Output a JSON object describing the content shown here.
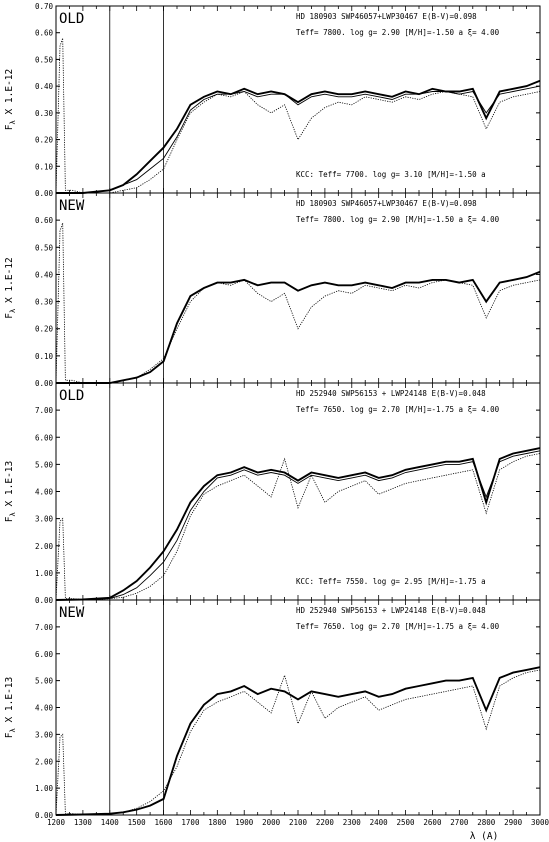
{
  "chart_data": [
    {
      "type": "line",
      "panel_label": "OLD",
      "ylabel_prefix": "F",
      "ylabel_sub": "λ",
      "ylabel_suffix": "X",
      "scale_label": "1.E-12",
      "header": "HD 180903 SWP46057+LWP30467   E(B-V)=0.098",
      "params": "Teff=   7800.  log g= 2.90 [M/H]=-1.50 a  ξ= 4.00",
      "kcc": "KCC: Teff=  7700. log g= 3.10 [M/H]=-1.50 a",
      "ylim": [
        0,
        0.7
      ],
      "y_ticks": [
        "0.00",
        "0.10",
        "0.20",
        "0.30",
        "0.40",
        "0.50",
        "0.60",
        "0.70"
      ],
      "series": [
        {
          "style": "dotted",
          "x": [
            1200,
            1215,
            1225,
            1235,
            1260,
            1300,
            1350,
            1400,
            1450,
            1500,
            1550,
            1600,
            1650,
            1700,
            1750,
            1800,
            1850,
            1900,
            1950,
            2000,
            2050,
            2100,
            2150,
            2200,
            2250,
            2300,
            2350,
            2400,
            2450,
            2500,
            2550,
            2600,
            2650,
            2700,
            2750,
            2800,
            2850,
            2900,
            2950,
            3000
          ],
          "y": [
            0.0,
            0.55,
            0.58,
            0.01,
            0.01,
            0.0,
            0.0,
            0.0,
            0.01,
            0.02,
            0.05,
            0.09,
            0.2,
            0.3,
            0.34,
            0.37,
            0.36,
            0.38,
            0.33,
            0.3,
            0.33,
            0.2,
            0.28,
            0.32,
            0.34,
            0.33,
            0.36,
            0.35,
            0.34,
            0.36,
            0.35,
            0.37,
            0.38,
            0.37,
            0.36,
            0.24,
            0.34,
            0.36,
            0.37,
            0.38
          ]
        },
        {
          "style": "thin",
          "x": [
            1200,
            1300,
            1400,
            1450,
            1500,
            1550,
            1600,
            1650,
            1700,
            1750,
            1800,
            1850,
            1900,
            1950,
            2000,
            2050,
            2100,
            2150,
            2200,
            2250,
            2300,
            2350,
            2400,
            2450,
            2500,
            2550,
            2600,
            2650,
            2700,
            2750,
            2800,
            2850,
            2900,
            2950,
            3000
          ],
          "y": [
            0.0,
            0.0,
            0.01,
            0.03,
            0.05,
            0.09,
            0.13,
            0.21,
            0.31,
            0.35,
            0.37,
            0.37,
            0.38,
            0.36,
            0.37,
            0.37,
            0.33,
            0.36,
            0.37,
            0.36,
            0.36,
            0.37,
            0.36,
            0.35,
            0.37,
            0.37,
            0.38,
            0.38,
            0.37,
            0.38,
            0.3,
            0.37,
            0.38,
            0.39,
            0.4
          ]
        },
        {
          "style": "thick",
          "x": [
            1200,
            1300,
            1400,
            1450,
            1500,
            1550,
            1600,
            1650,
            1700,
            1750,
            1800,
            1850,
            1900,
            1950,
            2000,
            2050,
            2100,
            2150,
            2200,
            2250,
            2300,
            2350,
            2400,
            2450,
            2500,
            2550,
            2600,
            2650,
            2700,
            2750,
            2800,
            2850,
            2900,
            2950,
            3000
          ],
          "y": [
            0.0,
            0.0,
            0.01,
            0.03,
            0.07,
            0.12,
            0.17,
            0.24,
            0.33,
            0.36,
            0.38,
            0.37,
            0.39,
            0.37,
            0.38,
            0.37,
            0.34,
            0.37,
            0.38,
            0.37,
            0.37,
            0.38,
            0.37,
            0.36,
            0.38,
            0.37,
            0.39,
            0.38,
            0.38,
            0.39,
            0.28,
            0.38,
            0.39,
            0.4,
            0.42
          ]
        }
      ]
    },
    {
      "type": "line",
      "panel_label": "NEW",
      "ylabel_prefix": "F",
      "ylabel_sub": "λ",
      "ylabel_suffix": "X",
      "scale_label": "1.E-12",
      "header": "HD 180903 SWP46057+LWP30467   E(B-V)=0.098",
      "params": "Teff=   7800.  log g= 2.90 [M/H]=-1.50 a  ξ= 4.00",
      "kcc": "",
      "ylim": [
        0,
        0.7
      ],
      "y_ticks": [
        "0.00",
        "0.10",
        "0.20",
        "0.30",
        "0.40",
        "0.50",
        "0.60",
        ""
      ],
      "series": [
        {
          "style": "dotted",
          "x": [
            1200,
            1215,
            1225,
            1235,
            1260,
            1300,
            1350,
            1400,
            1450,
            1500,
            1550,
            1600,
            1650,
            1700,
            1750,
            1800,
            1850,
            1900,
            1950,
            2000,
            2050,
            2100,
            2150,
            2200,
            2250,
            2300,
            2350,
            2400,
            2450,
            2500,
            2550,
            2600,
            2650,
            2700,
            2750,
            2800,
            2850,
            2900,
            2950,
            3000
          ],
          "y": [
            0.0,
            0.56,
            0.59,
            0.01,
            0.01,
            0.0,
            0.0,
            0.0,
            0.01,
            0.02,
            0.05,
            0.09,
            0.2,
            0.3,
            0.35,
            0.37,
            0.36,
            0.38,
            0.33,
            0.3,
            0.33,
            0.2,
            0.28,
            0.32,
            0.34,
            0.33,
            0.36,
            0.35,
            0.34,
            0.36,
            0.35,
            0.37,
            0.38,
            0.37,
            0.36,
            0.24,
            0.34,
            0.36,
            0.37,
            0.38
          ]
        },
        {
          "style": "thick",
          "x": [
            1200,
            1300,
            1400,
            1450,
            1500,
            1550,
            1600,
            1650,
            1700,
            1750,
            1800,
            1850,
            1900,
            1950,
            2000,
            2050,
            2100,
            2150,
            2200,
            2250,
            2300,
            2350,
            2400,
            2450,
            2500,
            2550,
            2600,
            2650,
            2700,
            2750,
            2800,
            2850,
            2900,
            2950,
            3000
          ],
          "y": [
            0.0,
            0.0,
            0.0,
            0.01,
            0.02,
            0.04,
            0.08,
            0.22,
            0.32,
            0.35,
            0.37,
            0.37,
            0.38,
            0.36,
            0.37,
            0.37,
            0.34,
            0.36,
            0.37,
            0.36,
            0.36,
            0.37,
            0.36,
            0.35,
            0.37,
            0.37,
            0.38,
            0.38,
            0.37,
            0.38,
            0.3,
            0.37,
            0.38,
            0.39,
            0.41
          ]
        }
      ]
    },
    {
      "type": "line",
      "panel_label": "OLD",
      "ylabel_prefix": "F",
      "ylabel_sub": "λ",
      "ylabel_suffix": "X",
      "scale_label": "1.E-13",
      "header": "HD 252940 SWP56153 + LWP24148 E(B-V)=0.048",
      "params": "Teff=   7650.  log g= 2.70 [M/H]=-1.75 a  ξ= 4.00",
      "kcc": "KCC: Teff=  7550. log g= 2.95 [M/H]=-1.75 a",
      "ylim": [
        0,
        8.0
      ],
      "y_ticks": [
        "0.00",
        "1.00",
        "2.00",
        "3.00",
        "4.00",
        "5.00",
        "6.00",
        "7.00"
      ],
      "series": [
        {
          "style": "dotted",
          "x": [
            1200,
            1215,
            1225,
            1235,
            1260,
            1300,
            1350,
            1400,
            1450,
            1500,
            1550,
            1600,
            1650,
            1700,
            1750,
            1800,
            1850,
            1900,
            1950,
            2000,
            2050,
            2100,
            2150,
            2200,
            2250,
            2300,
            2350,
            2400,
            2450,
            2500,
            2550,
            2600,
            2650,
            2700,
            2750,
            2800,
            2850,
            2900,
            2950,
            3000
          ],
          "y": [
            0.0,
            2.9,
            3.0,
            0.05,
            0.05,
            0.02,
            0.02,
            0.05,
            0.1,
            0.25,
            0.5,
            0.9,
            1.8,
            3.1,
            3.9,
            4.2,
            4.4,
            4.6,
            4.2,
            3.8,
            5.2,
            3.4,
            4.6,
            3.6,
            4.0,
            4.2,
            4.4,
            3.9,
            4.1,
            4.3,
            4.4,
            4.5,
            4.6,
            4.7,
            4.8,
            3.2,
            4.8,
            5.1,
            5.3,
            5.4
          ]
        },
        {
          "style": "thin",
          "x": [
            1200,
            1300,
            1400,
            1450,
            1500,
            1550,
            1600,
            1650,
            1700,
            1750,
            1800,
            1850,
            1900,
            1950,
            2000,
            2050,
            2100,
            2150,
            2200,
            2250,
            2300,
            2350,
            2400,
            2450,
            2500,
            2550,
            2600,
            2650,
            2700,
            2750,
            2800,
            2850,
            2900,
            2950,
            3000
          ],
          "y": [
            0.0,
            0.02,
            0.05,
            0.2,
            0.45,
            0.9,
            1.4,
            2.2,
            3.3,
            4.0,
            4.5,
            4.6,
            4.8,
            4.6,
            4.7,
            4.6,
            4.3,
            4.6,
            4.5,
            4.4,
            4.5,
            4.6,
            4.4,
            4.5,
            4.7,
            4.8,
            4.9,
            5.0,
            5.0,
            5.1,
            3.8,
            5.1,
            5.3,
            5.4,
            5.5
          ]
        },
        {
          "style": "thick",
          "x": [
            1200,
            1300,
            1400,
            1450,
            1500,
            1550,
            1600,
            1650,
            1700,
            1750,
            1800,
            1850,
            1900,
            1950,
            2000,
            2050,
            2100,
            2150,
            2200,
            2250,
            2300,
            2350,
            2400,
            2450,
            2500,
            2550,
            2600,
            2650,
            2700,
            2750,
            2800,
            2850,
            2900,
            2950,
            3000
          ],
          "y": [
            0.0,
            0.02,
            0.08,
            0.35,
            0.7,
            1.2,
            1.8,
            2.6,
            3.6,
            4.2,
            4.6,
            4.7,
            4.9,
            4.7,
            4.8,
            4.7,
            4.4,
            4.7,
            4.6,
            4.5,
            4.6,
            4.7,
            4.5,
            4.6,
            4.8,
            4.9,
            5.0,
            5.1,
            5.1,
            5.2,
            3.6,
            5.2,
            5.4,
            5.5,
            5.6
          ]
        }
      ]
    },
    {
      "type": "line",
      "panel_label": "NEW",
      "ylabel_prefix": "F",
      "ylabel_sub": "λ",
      "ylabel_suffix": "X",
      "scale_label": "1.E-13",
      "header": "HD 252940 SWP56153 + LWP24148 E(B-V)=0.048",
      "params": "Teff=   7650.  log g= 2.70 [M/H]=-1.75 a  ξ= 4.00",
      "kcc": "",
      "ylim": [
        0,
        8.0
      ],
      "y_ticks": [
        "0.00",
        "1.00",
        "2.00",
        "3.00",
        "4.00",
        "5.00",
        "6.00",
        "7.00"
      ],
      "xlabel": "λ (A)",
      "x_ticks": [
        "1200",
        "1300",
        "1400",
        "1500",
        "1600",
        "1700",
        "1800",
        "1900",
        "2000",
        "2100",
        "2200",
        "2300",
        "2400",
        "2500",
        "2600",
        "2700",
        "2800",
        "2900",
        "3000"
      ],
      "series": [
        {
          "style": "dotted",
          "x": [
            1200,
            1215,
            1225,
            1235,
            1260,
            1300,
            1350,
            1400,
            1450,
            1500,
            1550,
            1600,
            1650,
            1700,
            1750,
            1800,
            1850,
            1900,
            1950,
            2000,
            2050,
            2100,
            2150,
            2200,
            2250,
            2300,
            2350,
            2400,
            2450,
            2500,
            2550,
            2600,
            2650,
            2700,
            2750,
            2800,
            2850,
            2900,
            2950,
            3000
          ],
          "y": [
            0.0,
            2.9,
            3.0,
            0.05,
            0.05,
            0.02,
            0.02,
            0.05,
            0.1,
            0.25,
            0.5,
            0.9,
            1.8,
            3.1,
            3.9,
            4.2,
            4.4,
            4.6,
            4.2,
            3.8,
            5.2,
            3.4,
            4.6,
            3.6,
            4.0,
            4.2,
            4.4,
            3.9,
            4.1,
            4.3,
            4.4,
            4.5,
            4.6,
            4.7,
            4.8,
            3.2,
            4.8,
            5.1,
            5.3,
            5.4
          ]
        },
        {
          "style": "thick",
          "x": [
            1200,
            1300,
            1400,
            1450,
            1500,
            1550,
            1600,
            1650,
            1700,
            1750,
            1800,
            1850,
            1900,
            1950,
            2000,
            2050,
            2100,
            2150,
            2200,
            2250,
            2300,
            2350,
            2400,
            2450,
            2500,
            2550,
            2600,
            2650,
            2700,
            2750,
            2800,
            2850,
            2900,
            2950,
            3000
          ],
          "y": [
            0.0,
            0.02,
            0.05,
            0.1,
            0.2,
            0.35,
            0.6,
            2.2,
            3.4,
            4.1,
            4.5,
            4.6,
            4.8,
            4.5,
            4.7,
            4.6,
            4.3,
            4.6,
            4.5,
            4.4,
            4.5,
            4.6,
            4.4,
            4.5,
            4.7,
            4.8,
            4.9,
            5.0,
            5.0,
            5.1,
            3.9,
            5.1,
            5.3,
            5.4,
            5.5
          ]
        }
      ]
    }
  ]
}
